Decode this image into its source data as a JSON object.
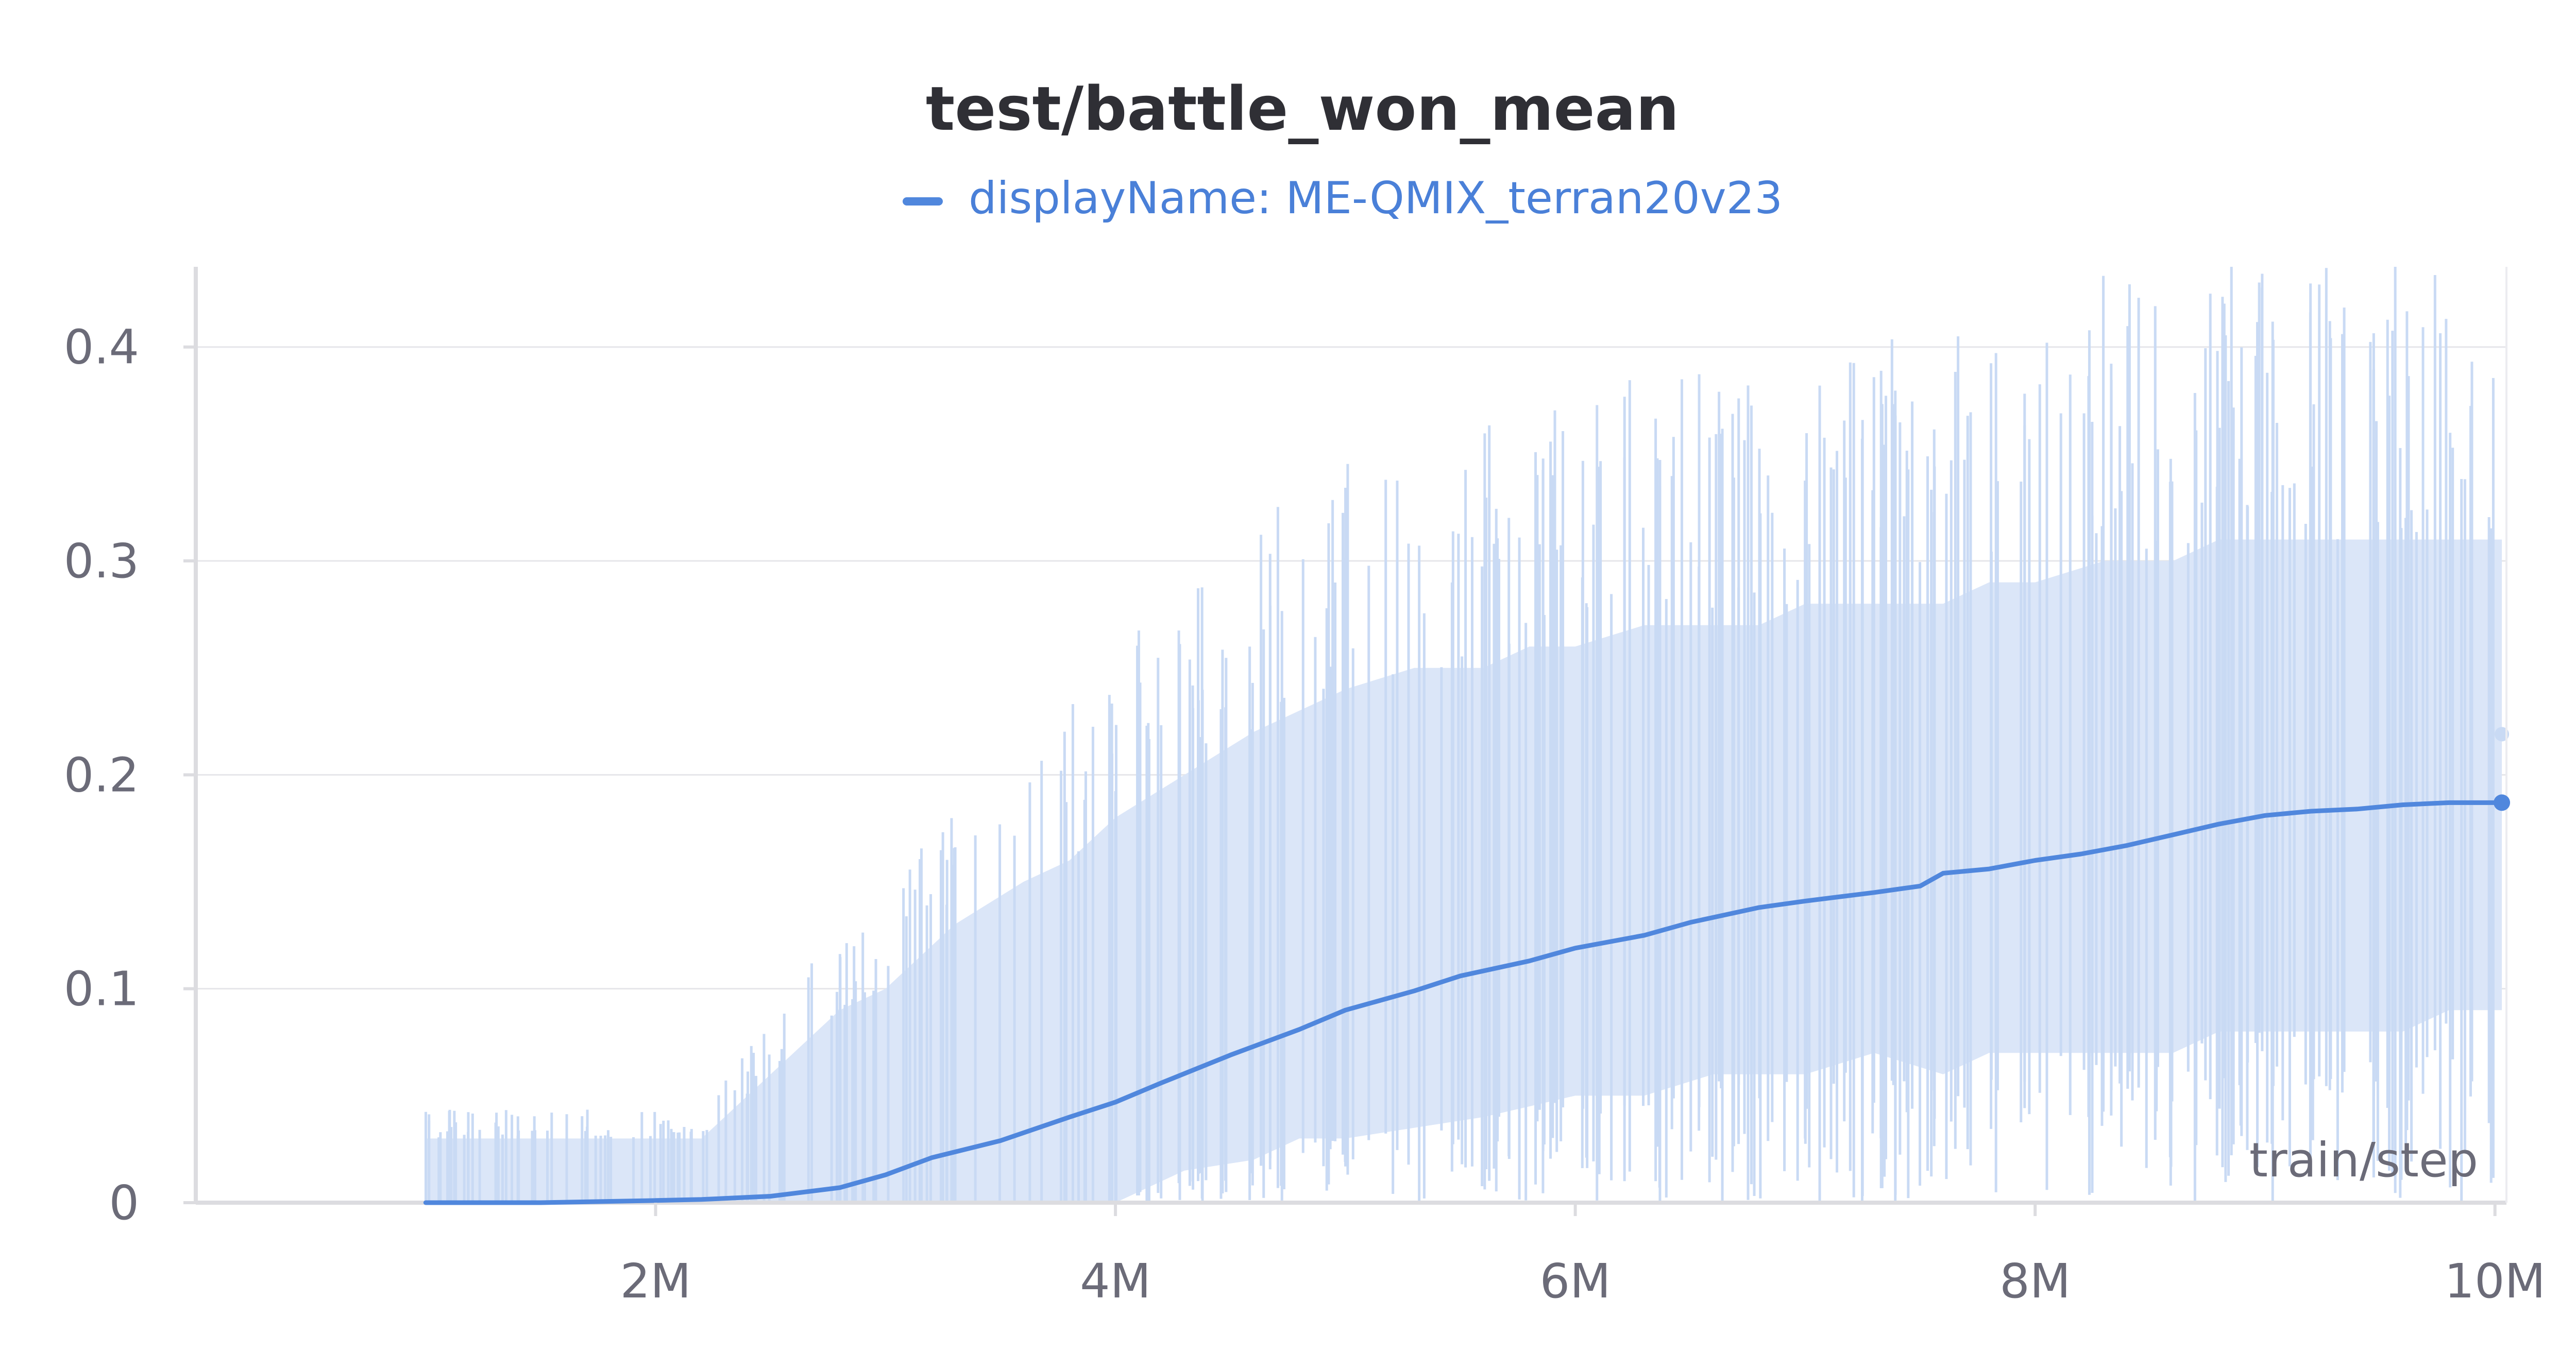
{
  "chart_data": {
    "type": "line",
    "title": "test/battle_won_mean",
    "xlabel": "train/step",
    "ylabel": "",
    "xlim": [
      0,
      10050000
    ],
    "ylim": [
      0,
      0.4375
    ],
    "x_ticks": [
      {
        "value": 2000000,
        "label": "2M"
      },
      {
        "value": 4000000,
        "label": "4M"
      },
      {
        "value": 6000000,
        "label": "6M"
      },
      {
        "value": 8000000,
        "label": "8M"
      },
      {
        "value": 10000000,
        "label": "10M"
      }
    ],
    "y_ticks": [
      {
        "value": 0,
        "label": "0"
      },
      {
        "value": 0.1,
        "label": "0.1"
      },
      {
        "value": 0.2,
        "label": "0.2"
      },
      {
        "value": 0.3,
        "label": "0.3"
      },
      {
        "value": 0.4,
        "label": "0.4"
      }
    ],
    "grid": true,
    "legend_position": "top",
    "colors": {
      "smoothed": "#5087dd",
      "raw": "#dbe6f8",
      "raw_spike": "#c9daf4",
      "grid": "#e6e6ea",
      "axis": "#dcdce0"
    },
    "series": [
      {
        "name": "displayName: ME-QMIX_terran20v23",
        "kind": "smoothed",
        "x": [
          1000000,
          1500000,
          2000000,
          2200000,
          2500000,
          2800000,
          3000000,
          3200000,
          3500000,
          3800000,
          4000000,
          4200000,
          4500000,
          4800000,
          5000000,
          5300000,
          5500000,
          5800000,
          6000000,
          6300000,
          6500000,
          6800000,
          7000000,
          7300000,
          7500000,
          7600000,
          7800000,
          8000000,
          8200000,
          8400000,
          8600000,
          8800000,
          9000000,
          9200000,
          9400000,
          9600000,
          9800000,
          10030000
        ],
        "y": [
          0,
          0,
          0.001,
          0.0015,
          0.003,
          0.007,
          0.013,
          0.021,
          0.029,
          0.04,
          0.047,
          0.056,
          0.069,
          0.081,
          0.09,
          0.099,
          0.106,
          0.113,
          0.119,
          0.125,
          0.131,
          0.138,
          0.141,
          0.145,
          0.148,
          0.154,
          0.156,
          0.16,
          0.163,
          0.167,
          0.172,
          0.177,
          0.181,
          0.183,
          0.184,
          0.186,
          0.187,
          0.187
        ]
      },
      {
        "name": "raw",
        "kind": "raw-band",
        "x": [
          1000000,
          2000000,
          2200000,
          2500000,
          2800000,
          3000000,
          3300000,
          3600000,
          3800000,
          4000000,
          4300000,
          4600000,
          4800000,
          5000000,
          5300000,
          5600000,
          5800000,
          6000000,
          6300000,
          6600000,
          6800000,
          7000000,
          7300000,
          7600000,
          7800000,
          8000000,
          8300000,
          8600000,
          8800000,
          9000000,
          9300000,
          9600000,
          9800000,
          10030000
        ],
        "low": [
          0,
          0,
          0,
          0,
          0,
          0,
          0,
          0,
          0,
          0,
          0.015,
          0.02,
          0.03,
          0.03,
          0.035,
          0.04,
          0.045,
          0.05,
          0.05,
          0.06,
          0.06,
          0.06,
          0.07,
          0.06,
          0.07,
          0.07,
          0.07,
          0.07,
          0.08,
          0.08,
          0.08,
          0.08,
          0.09,
          0.09
        ],
        "high": [
          0.03,
          0.03,
          0.03,
          0.06,
          0.09,
          0.1,
          0.13,
          0.15,
          0.16,
          0.18,
          0.2,
          0.22,
          0.23,
          0.24,
          0.25,
          0.25,
          0.26,
          0.26,
          0.27,
          0.27,
          0.27,
          0.28,
          0.28,
          0.28,
          0.29,
          0.29,
          0.3,
          0.3,
          0.31,
          0.31,
          0.31,
          0.31,
          0.31,
          0.31
        ]
      }
    ],
    "last_values": {
      "smoothed": 0.187,
      "raw": 0.219
    }
  }
}
